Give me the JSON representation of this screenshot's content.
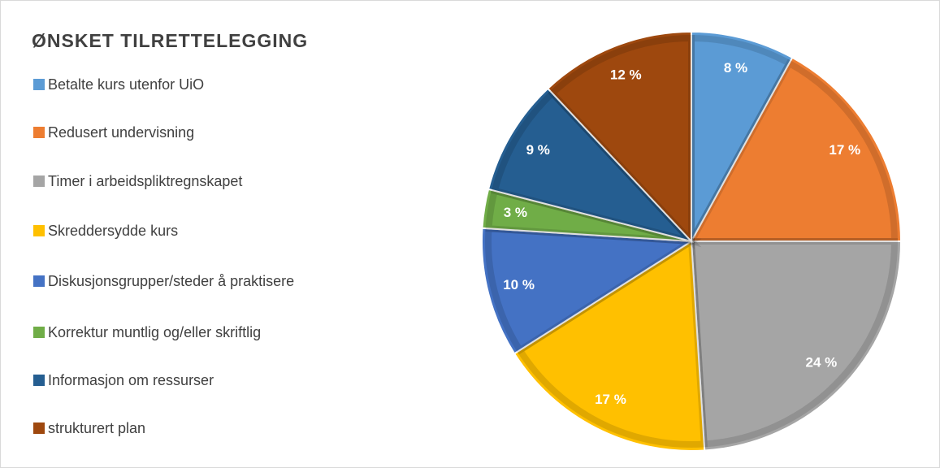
{
  "chart_data": {
    "type": "pie",
    "title": "ØNSKET TILRETTELEGGING",
    "categories": [
      "Betalte kurs utenfor UiO",
      "Redusert undervisning",
      "Timer i arbeidspliktregnskapet",
      "Skreddersydde kurs",
      "Diskusjonsgrupper/steder å praktisere",
      "Korrektur muntlig og/eller skriftlig",
      "Informasjon om ressurser",
      "strukturert plan"
    ],
    "values": [
      8,
      17,
      24,
      17,
      10,
      3,
      9,
      12
    ],
    "value_labels": [
      "8 %",
      "17 %",
      "24 %",
      "17 %",
      "10 %",
      "3 %",
      "9 %",
      "12 %"
    ],
    "colors": [
      "#5b9bd5",
      "#ed7d31",
      "#a5a5a5",
      "#ffc000",
      "#4472c4",
      "#70ad47",
      "#255e91",
      "#9e480e"
    ],
    "legend": "left"
  }
}
